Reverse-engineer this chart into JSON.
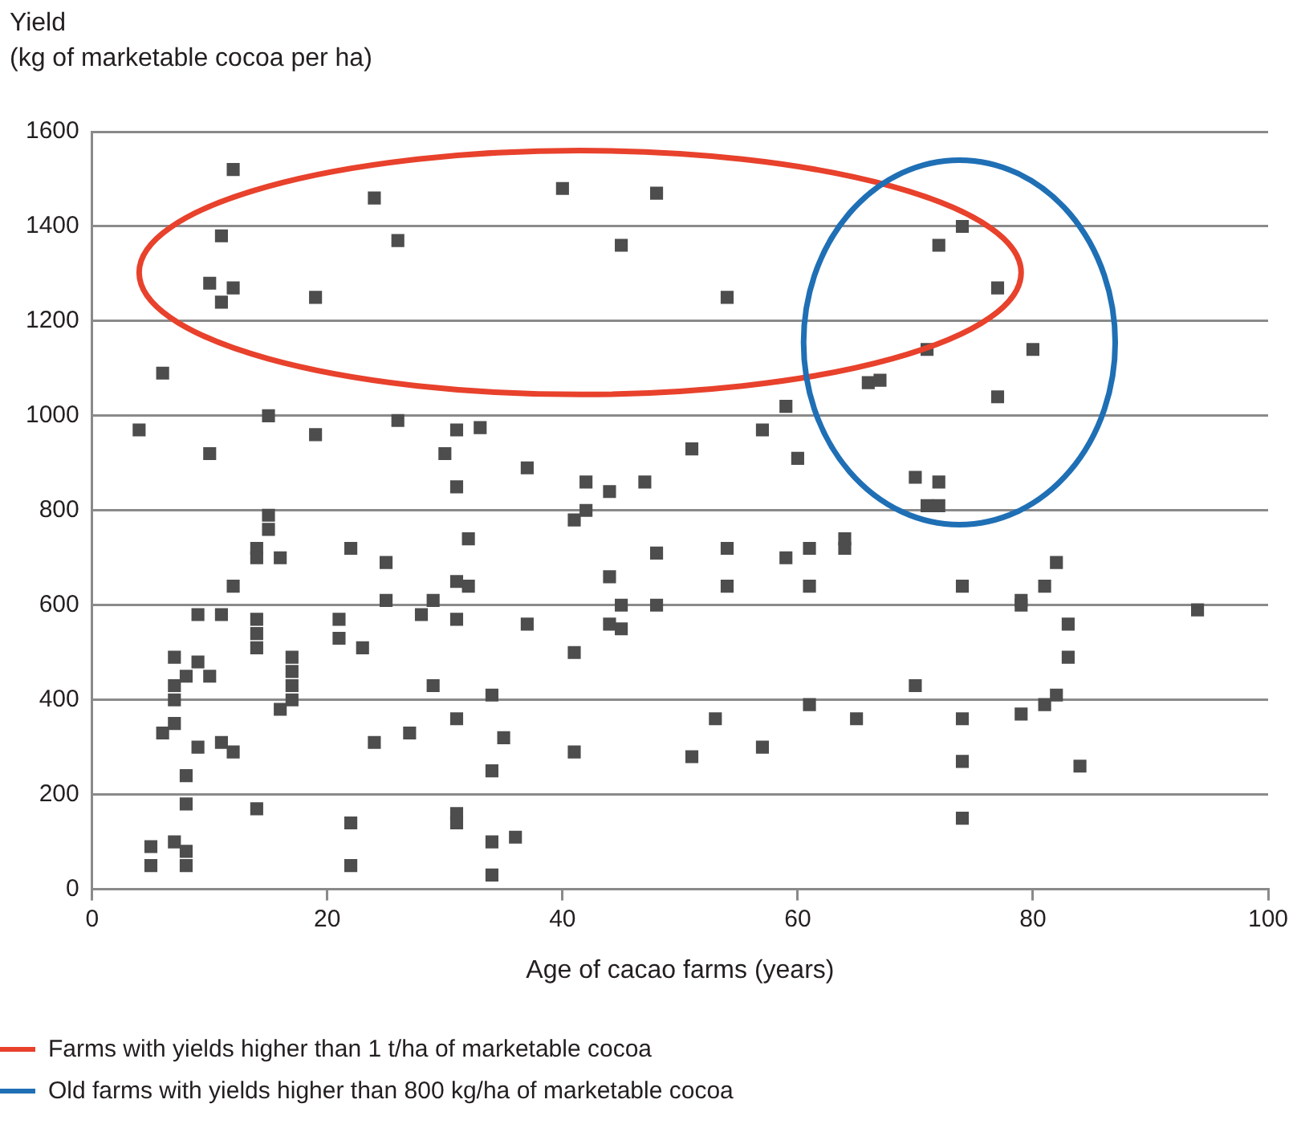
{
  "chart_data": {
    "type": "scatter",
    "xlabel": "Age of cacao farms (years)",
    "ylabel": "Yield\n(kg of marketable cocoa per ha)",
    "xlim": [
      0,
      100
    ],
    "xticks": [
      0,
      20,
      40,
      60,
      80,
      100
    ],
    "ylim": [
      0,
      1600
    ],
    "yticks": [
      0,
      200,
      400,
      600,
      800,
      1000,
      1200,
      1400,
      1600
    ],
    "grid": "y",
    "legend": false,
    "marker": "square",
    "annotations": [
      "Farms with yields higher than 1 t/ha of marketable cocoa",
      "Old farms with yields higher than 800 kg/ha of marketable cocoa"
    ],
    "series": [
      {
        "color": "#4d4d4d",
        "x": [
          4,
          5,
          5,
          6,
          7,
          6,
          7,
          7,
          7,
          7,
          8,
          8,
          8,
          8,
          8,
          9,
          9,
          9,
          10,
          10,
          10,
          11,
          11,
          11,
          11,
          12,
          12,
          12,
          12,
          14,
          14,
          14,
          14,
          14,
          14,
          15,
          15,
          15,
          16,
          16,
          17,
          17,
          17,
          17,
          19,
          19,
          21,
          21,
          22,
          22,
          22,
          23,
          24,
          24,
          25,
          25,
          26,
          26,
          27,
          28,
          29,
          29,
          30,
          31,
          31,
          31,
          31,
          31,
          31,
          31,
          32,
          32,
          33,
          34,
          34,
          34,
          34,
          35,
          36,
          37,
          37,
          40,
          41,
          41,
          41,
          42,
          42,
          44,
          44,
          44,
          45,
          45,
          45,
          47,
          48,
          48,
          48,
          51,
          51,
          53,
          54,
          54,
          54,
          57,
          57,
          59,
          59,
          60,
          61,
          61,
          61,
          64,
          64,
          65,
          66,
          67,
          70,
          70,
          71,
          71,
          72,
          72,
          72,
          74,
          74,
          74,
          74,
          74,
          77,
          77,
          79,
          79,
          79,
          80,
          81,
          81,
          82,
          82,
          83,
          83,
          84,
          94
        ],
        "values": [
          970,
          90,
          50,
          1090,
          100,
          330,
          350,
          490,
          430,
          400,
          240,
          180,
          80,
          50,
          450,
          580,
          300,
          480,
          450,
          920,
          1280,
          1380,
          1240,
          580,
          310,
          1270,
          1520,
          640,
          290,
          720,
          700,
          570,
          540,
          510,
          170,
          1000,
          790,
          760,
          700,
          380,
          490,
          460,
          430,
          400,
          1250,
          960,
          570,
          530,
          720,
          140,
          50,
          510,
          1460,
          310,
          690,
          610,
          1370,
          990,
          330,
          580,
          610,
          430,
          920,
          970,
          850,
          650,
          570,
          360,
          160,
          140,
          740,
          640,
          975,
          410,
          250,
          100,
          30,
          320,
          110,
          890,
          560,
          1480,
          780,
          500,
          290,
          860,
          800,
          660,
          840,
          560,
          1360,
          600,
          550,
          860,
          1470,
          710,
          600,
          930,
          280,
          360,
          1250,
          720,
          640,
          970,
          300,
          1020,
          700,
          910,
          720,
          640,
          390,
          740,
          720,
          360,
          1070,
          1075,
          870,
          430,
          1140,
          810,
          1360,
          860,
          810,
          1400,
          640,
          360,
          270,
          150,
          1270,
          1040,
          610,
          600,
          370,
          1140,
          640,
          390,
          690,
          410,
          560,
          490,
          260,
          590
        ]
      }
    ]
  }
}
